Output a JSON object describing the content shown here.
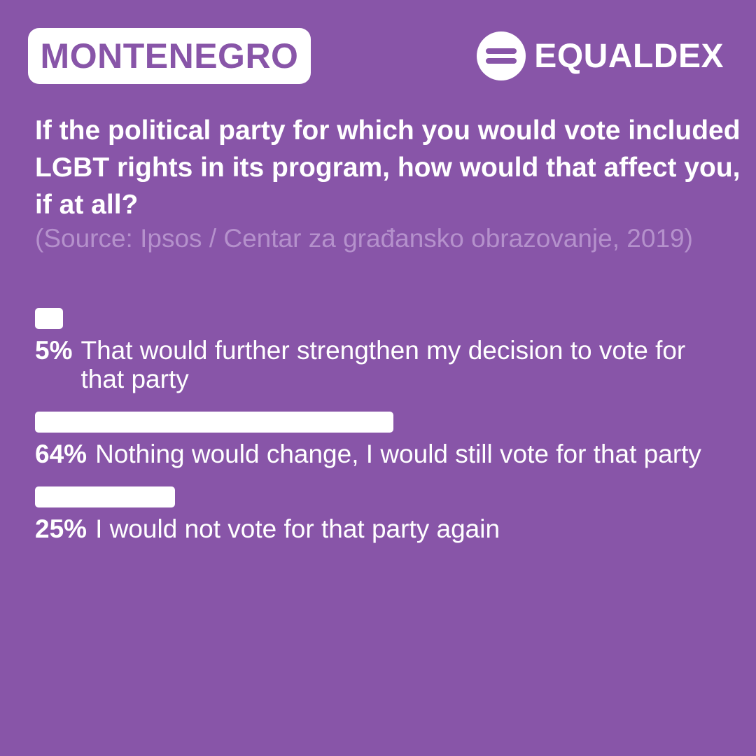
{
  "header": {
    "country": "MONTENEGRO",
    "brand": "EQUALDEX",
    "brand_icon": "equaldex-logo-icon"
  },
  "colors": {
    "background": "#8855a8",
    "foreground": "#ffffff",
    "source_text": "#b591cc"
  },
  "question": "If the political party for which you would vote included LGBT rights in its program, how would that affect you, if at all?",
  "source": "(Source: Ipsos / Centar za građansko obrazovanje, 2019)",
  "chart_data": {
    "type": "bar",
    "orientation": "horizontal",
    "unit": "%",
    "value_max": 100,
    "items": [
      {
        "value": 5,
        "value_label": "5%",
        "label": "That would further strengthen my decision to vote for that party"
      },
      {
        "value": 64,
        "value_label": "64%",
        "label": "Nothing would change, I would still vote for that party"
      },
      {
        "value": 25,
        "value_label": "25%",
        "label": "I would not vote for that party again"
      }
    ]
  }
}
